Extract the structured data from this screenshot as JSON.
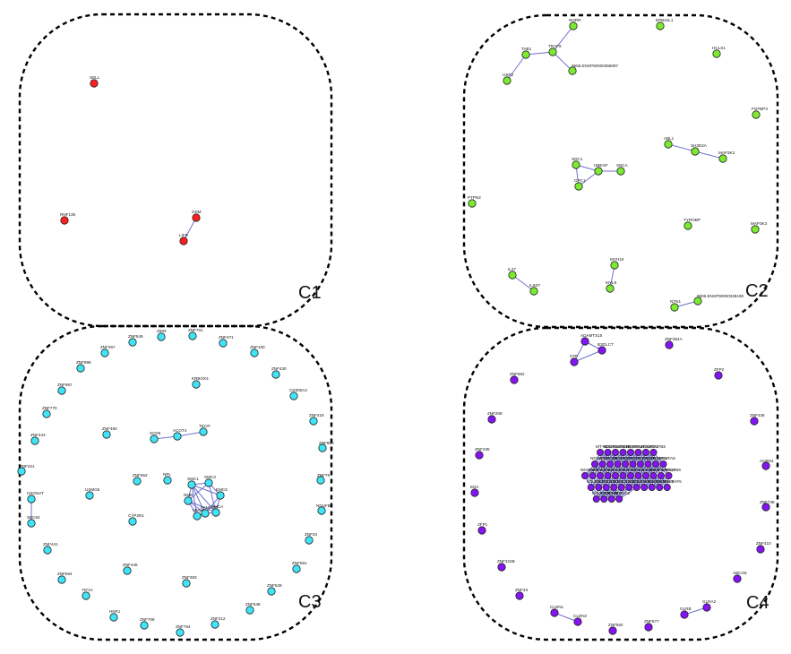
{
  "clusters": [
    {
      "id": "c1",
      "label": "C1",
      "color": "#ff1f1f",
      "nodes": [
        {
          "id": "c1-sell",
          "label": "SELL"
        },
        {
          "id": "c1-rnf135",
          "label": "RNF135"
        },
        {
          "id": "c1-osm",
          "label": "OSM"
        },
        {
          "id": "c1-lifr",
          "label": "LIFR"
        }
      ],
      "edges": [
        [
          "c1-osm",
          "c1-lifr"
        ]
      ]
    },
    {
      "id": "c2",
      "label": "C2",
      "color": "#7bea31",
      "nodes": [
        {
          "id": "c2-ngrr",
          "label": "NGRR"
        },
        {
          "id": "c2-tab1",
          "label": "TAB1"
        },
        {
          "id": "c2-traf6",
          "label": "TRAF6"
        },
        {
          "id": "c2-usp2",
          "label": "USP2"
        },
        {
          "id": "c2-ensp1",
          "label": "9606.ENSP00000358097"
        },
        {
          "id": "c2-epb41l1",
          "label": "EPB41L1"
        },
        {
          "id": "c2-hcls1",
          "label": "HCLS1"
        },
        {
          "id": "c2-fgfbp3",
          "label": "FGFBP3"
        },
        {
          "id": "c2-abl1",
          "label": "ABL1"
        },
        {
          "id": "c2-sh3d2a",
          "label": "SH3D2A"
        },
        {
          "id": "c2-map3k2",
          "label": "MAP3K2"
        },
        {
          "id": "c2-sdc1",
          "label": "SDC1"
        },
        {
          "id": "c2-hbegf",
          "label": "HBEGF"
        },
        {
          "id": "c2-gpc1",
          "label": "GPC1"
        },
        {
          "id": "c2-snca",
          "label": "SNCA"
        },
        {
          "id": "c2-ptpn2",
          "label": "PTPN2"
        },
        {
          "id": "c2-tyrobp",
          "label": "TYROBP"
        },
        {
          "id": "c2-map3k3",
          "label": "MAP3K3"
        },
        {
          "id": "c2-il27",
          "label": "IL27"
        },
        {
          "id": "c2-il6st",
          "label": "IL6ST"
        },
        {
          "id": "c2-myh10",
          "label": "MYH10"
        },
        {
          "id": "c2-myl9",
          "label": "MYL9"
        },
        {
          "id": "c2-ntn1",
          "label": "NTN1"
        },
        {
          "id": "c2-ensp2",
          "label": "9606.ENSP00000338190"
        }
      ],
      "edges": [
        [
          "c2-tab1",
          "c2-traf6"
        ],
        [
          "c2-traf6",
          "c2-ngrr"
        ],
        [
          "c2-tab1",
          "c2-usp2"
        ],
        [
          "c2-traf6",
          "c2-ensp1"
        ],
        [
          "c2-abl1",
          "c2-sh3d2a"
        ],
        [
          "c2-sh3d2a",
          "c2-map3k2"
        ],
        [
          "c2-sdc1",
          "c2-hbegf"
        ],
        [
          "c2-sdc1",
          "c2-gpc1"
        ],
        [
          "c2-hbegf",
          "c2-gpc1"
        ],
        [
          "c2-hbegf",
          "c2-snca"
        ],
        [
          "c2-il27",
          "c2-il6st"
        ],
        [
          "c2-myh10",
          "c2-myl9"
        ],
        [
          "c2-ntn1",
          "c2-ensp2"
        ]
      ]
    },
    {
      "id": "c3",
      "label": "C3",
      "color": "#3fe4f7",
      "nodes": [
        {
          "id": "c3-znf549",
          "label": "ZNF549"
        },
        {
          "id": "c3-zim3",
          "label": "ZIM3"
        },
        {
          "id": "c3-znf701",
          "label": "ZNF701"
        },
        {
          "id": "c3-znf471",
          "label": "ZNF471"
        },
        {
          "id": "c3-znf100",
          "label": "ZNF100"
        },
        {
          "id": "c3-znf430",
          "label": "ZNF430"
        },
        {
          "id": "c3-cd300a2",
          "label": "CD300A2"
        },
        {
          "id": "c3-znf415",
          "label": "ZNF415"
        },
        {
          "id": "c3-znf880",
          "label": "ZNF880"
        },
        {
          "id": "c3-znf78",
          "label": "ZNF78"
        },
        {
          "id": "c3-nduf86",
          "label": "NDUFB6"
        },
        {
          "id": "c3-znf34",
          "label": "ZNF34"
        },
        {
          "id": "c3-znf561",
          "label": "ZNF561"
        },
        {
          "id": "c3-znf529",
          "label": "ZNF529"
        },
        {
          "id": "c3-znf548",
          "label": "ZNF548"
        },
        {
          "id": "c3-znf212",
          "label": "ZNF212"
        },
        {
          "id": "c3-znf764",
          "label": "ZNF764"
        },
        {
          "id": "c3-znf708",
          "label": "ZNF708"
        },
        {
          "id": "c3-hkr1",
          "label": "HKR1"
        },
        {
          "id": "c3-yif1a",
          "label": "YIF1A"
        },
        {
          "id": "c3-znf564",
          "label": "ZNF564"
        },
        {
          "id": "c3-znf441",
          "label": "ZNF441"
        },
        {
          "id": "c3-sec64",
          "label": "SEC64"
        },
        {
          "id": "c3-hsgnat",
          "label": "HSGNAT"
        },
        {
          "id": "c3-znf221",
          "label": "ZNF221"
        },
        {
          "id": "c3-znf443",
          "label": "ZNF443"
        },
        {
          "id": "c3-znf770",
          "label": "ZNF770"
        },
        {
          "id": "c3-znf667",
          "label": "ZNF667"
        },
        {
          "id": "c3-znf888",
          "label": "ZNF888"
        },
        {
          "id": "c3-znf267",
          "label": "ZNF267"
        },
        {
          "id": "c3-krbox4",
          "label": "KRBOX4"
        },
        {
          "id": "c3-znf490",
          "label": "ZNF490"
        },
        {
          "id": "c3-scd5",
          "label": "SCD5"
        },
        {
          "id": "c3-acot4",
          "label": "ACOT4"
        },
        {
          "id": "c3-tecr",
          "label": "TECR"
        },
        {
          "id": "c3-znf552",
          "label": "ZNF552"
        },
        {
          "id": "c3-npl",
          "label": "NPL"
        },
        {
          "id": "c3-usmg5",
          "label": "USMG5"
        },
        {
          "id": "c3-cyp2r1",
          "label": "CYP2R1"
        },
        {
          "id": "c3-znf445",
          "label": "ZNF445"
        },
        {
          "id": "c3-znf383",
          "label": "ZNF383"
        },
        {
          "id": "c3-smc1",
          "label": "SMC1"
        },
        {
          "id": "c3-smc3",
          "label": "SMC3"
        },
        {
          "id": "c3-nmb",
          "label": "NMB"
        },
        {
          "id": "c3-mmut",
          "label": "MMUT"
        },
        {
          "id": "c3-emc6",
          "label": "EMC6"
        },
        {
          "id": "c3-fancd2",
          "label": "FANCD2"
        },
        {
          "id": "c3-smca",
          "label": "SMCA"
        }
      ],
      "edges": [
        [
          "c3-scd5",
          "c3-acot4"
        ],
        [
          "c3-acot4",
          "c3-tecr"
        ],
        [
          "c3-hsgnat",
          "c3-sec64"
        ],
        [
          "c3-smc1",
          "c3-smc3"
        ],
        [
          "c3-smc1",
          "c3-nmb"
        ],
        [
          "c3-smc1",
          "c3-mmut"
        ],
        [
          "c3-smc1",
          "c3-emc6"
        ],
        [
          "c3-smc1",
          "c3-fancd2"
        ],
        [
          "c3-smc1",
          "c3-smca"
        ],
        [
          "c3-smc3",
          "c3-nmb"
        ],
        [
          "c3-smc3",
          "c3-emc6"
        ],
        [
          "c3-smc3",
          "c3-smca"
        ],
        [
          "c3-nmb",
          "c3-mmut"
        ],
        [
          "c3-nmb",
          "c3-fancd2"
        ],
        [
          "c3-nmb",
          "c3-smca"
        ],
        [
          "c3-mmut",
          "c3-fancd2"
        ],
        [
          "c3-emc6",
          "c3-smca"
        ],
        [
          "c3-emc6",
          "c3-fancd2"
        ],
        [
          "c3-fancd2",
          "c3-smca"
        ]
      ]
    },
    {
      "id": "c4",
      "label": "C4",
      "color": "#8414f3",
      "nodes": [
        {
          "id": "c4-adamts15",
          "label": "ADAMTS15"
        },
        {
          "id": "c4-b3glct",
          "label": "B3GLCT"
        },
        {
          "id": "c4-cfp",
          "label": "CFP"
        },
        {
          "id": "c4-znf354a",
          "label": "ZNF354A"
        },
        {
          "id": "c4-znf662",
          "label": "ZNF662"
        },
        {
          "id": "c4-zfp2",
          "label": "ZFP2"
        },
        {
          "id": "c4-znf208",
          "label": "ZNF208"
        },
        {
          "id": "c4-znf436",
          "label": "ZNF436"
        },
        {
          "id": "c4-znf235",
          "label": "ZNF235"
        },
        {
          "id": "c4-acbd4",
          "label": "ACBD4"
        },
        {
          "id": "c4-eda",
          "label": "EDA"
        },
        {
          "id": "c4-znf746",
          "label": "ZNF746"
        },
        {
          "id": "c4-zfp1",
          "label": "ZFP1"
        },
        {
          "id": "c4-znf410",
          "label": "ZNF410"
        },
        {
          "id": "c4-znf324b",
          "label": "ZNF324B"
        },
        {
          "id": "c4-abcg5",
          "label": "ABCG5"
        },
        {
          "id": "c4-znf33",
          "label": "ZNF33"
        },
        {
          "id": "c4-cldn1",
          "label": "CLDN1"
        },
        {
          "id": "c4-cldn2",
          "label": "CLDN2"
        },
        {
          "id": "c4-znf562",
          "label": "ZNF562"
        },
        {
          "id": "c4-znf577",
          "label": "ZNF577"
        },
        {
          "id": "c4-glrb",
          "label": "GLRB"
        },
        {
          "id": "c4-glra2",
          "label": "GLRA2"
        },
        {
          "id": "c4-mt-nd3",
          "label": "MT-ND3"
        },
        {
          "id": "c4-ndufb4",
          "label": "NDUFB4"
        },
        {
          "id": "c4-ndufb10",
          "label": "NDUFB10"
        },
        {
          "id": "c4-ndufa5",
          "label": "NDUFA5"
        },
        {
          "id": "c4-ndufa4",
          "label": "NDUFA4"
        },
        {
          "id": "c4-ndufs2",
          "label": "NDUFS2"
        },
        {
          "id": "c4-ndufv1",
          "label": "NDUFV1"
        },
        {
          "id": "c4-ndufb8",
          "label": "NDUFB8"
        },
        {
          "id": "c4-ndufs3",
          "label": "NDUFS3"
        },
        {
          "id": "c4-ndufa13",
          "label": "NDUFA13"
        },
        {
          "id": "c4-ndufa6",
          "label": "NDUFA6"
        },
        {
          "id": "c4-ndufb3",
          "label": "NDUFB3"
        },
        {
          "id": "c4-ndufs7",
          "label": "NDUFS7"
        },
        {
          "id": "c4-ndufa9",
          "label": "NDUFA9"
        },
        {
          "id": "c4-ndufb11",
          "label": "NDUFB11"
        },
        {
          "id": "c4-ndufc2",
          "label": "NDUFC2"
        },
        {
          "id": "c4-ndufa2",
          "label": "NDUFA2"
        },
        {
          "id": "c4-ndufa8",
          "label": "NDUFA8"
        },
        {
          "id": "c4-ndufb5",
          "label": "NDUFB5"
        },
        {
          "id": "c4-ndufv2",
          "label": "NDUFV2"
        },
        {
          "id": "c4-ndufs5",
          "label": "NDUFS5"
        },
        {
          "id": "c4-ndufa3",
          "label": "NDUFA3"
        },
        {
          "id": "c4-ndufb7",
          "label": "NDUFB7"
        },
        {
          "id": "c4-ndufs8",
          "label": "NDUFS8"
        },
        {
          "id": "c4-ndufa1",
          "label": "NDUFA1"
        },
        {
          "id": "c4-ndufa10",
          "label": "NDUFA10"
        },
        {
          "id": "c4-ndufb2",
          "label": "NDUFB2"
        },
        {
          "id": "c4-ndufs6",
          "label": "NDUFS6"
        },
        {
          "id": "c4-ndufa12",
          "label": "NDUFA12"
        },
        {
          "id": "c4-ndufb9",
          "label": "NDUFB9"
        },
        {
          "id": "c4-ndufa7",
          "label": "NDUFA7"
        },
        {
          "id": "c4-ndufs1",
          "label": "NDUFS1"
        },
        {
          "id": "c4-ndufb1",
          "label": "NDUFB1"
        },
        {
          "id": "c4-ndufc1",
          "label": "NDUFC1"
        },
        {
          "id": "c4-ndufa11",
          "label": "NDUFA11"
        },
        {
          "id": "c4-ndufs4",
          "label": "NDUFS4"
        },
        {
          "id": "c4-ndufaf1",
          "label": "NDUFAF1"
        },
        {
          "id": "c4-ndufaf2",
          "label": "NDUFAF2"
        },
        {
          "id": "c4-ndufaf3",
          "label": "NDUFAF3"
        },
        {
          "id": "c4-ndufaf4",
          "label": "NDUFAF4"
        },
        {
          "id": "c4-ndufaf5",
          "label": "NDUFAF5"
        },
        {
          "id": "c4-ndufaf6",
          "label": "NDUFAF6"
        },
        {
          "id": "c4-ndufaf7",
          "label": "NDUFAF7"
        },
        {
          "id": "c4-mt-nd1",
          "label": "MT-ND1"
        },
        {
          "id": "c4-mt-nd2",
          "label": "MT-ND2"
        }
      ],
      "edges": [
        [
          "c4-adamts15",
          "c4-cfp"
        ],
        [
          "c4-adamts15",
          "c4-b3glct"
        ],
        [
          "c4-cfp",
          "c4-b3glct"
        ],
        [
          "c4-cldn1",
          "c4-cldn2"
        ],
        [
          "c4-glrb",
          "c4-glra2"
        ]
      ]
    }
  ]
}
